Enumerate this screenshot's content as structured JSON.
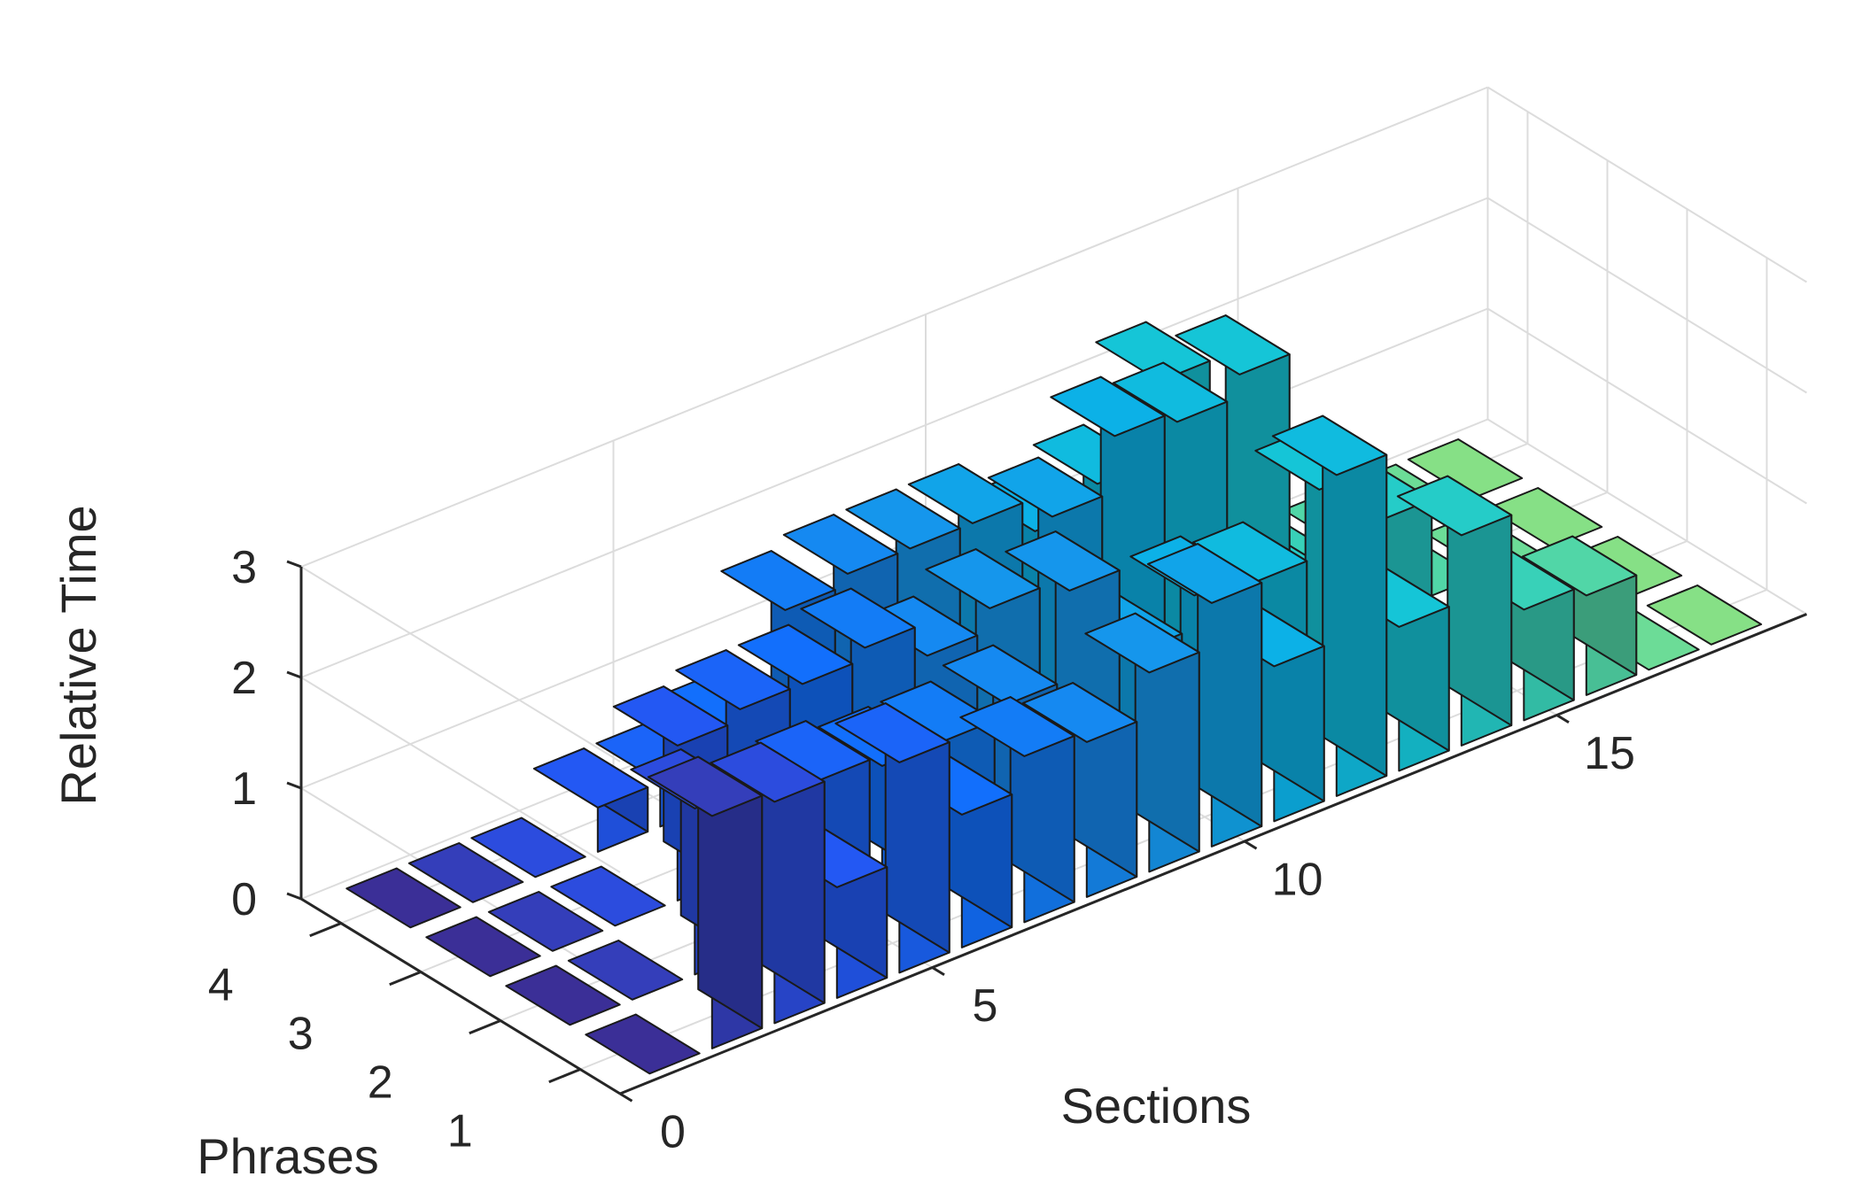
{
  "chart_data": {
    "type": "bar3d",
    "xlabel": "Sections",
    "ylabel": "Phrases",
    "zlabel": "Relative Time",
    "x_ticks": [
      0,
      5,
      10,
      15
    ],
    "y_ticks": [
      1,
      2,
      3,
      4
    ],
    "z_ticks": [
      0,
      1,
      2,
      3
    ],
    "xlim": [
      0,
      19
    ],
    "ylim": [
      0.5,
      4.5
    ],
    "zlim": [
      0,
      3
    ],
    "grid": true,
    "colormap": "parula",
    "sections": [
      1,
      2,
      3,
      4,
      5,
      6,
      7,
      8,
      9,
      10,
      11,
      12,
      13,
      14,
      15,
      16,
      17,
      18
    ],
    "phrases": [
      1,
      2,
      3,
      4
    ],
    "values": [
      [
        0.0,
        0.0,
        0.0,
        0.0
      ],
      [
        2.1,
        0.0,
        0.0,
        0.0
      ],
      [
        2.0,
        1.5,
        0.0,
        0.0
      ],
      [
        1.0,
        0.4,
        1.4,
        0.4
      ],
      [
        1.9,
        1.3,
        1.5,
        0.4
      ],
      [
        1.2,
        1.2,
        1.5,
        0.6
      ],
      [
        1.5,
        1.2,
        1.6,
        1.5
      ],
      [
        1.4,
        1.3,
        1.3,
        1.6
      ],
      [
        1.8,
        2.1,
        1.5,
        1.6
      ],
      [
        2.2,
        1.3,
        2.1,
        1.6
      ],
      [
        1.4,
        1.6,
        2.6,
        1.3
      ],
      [
        2.9,
        1.5,
        2.5,
        1.5
      ],
      [
        1.3,
        2.1,
        2.7,
        2.2
      ],
      [
        1.9,
        1.6,
        0.4,
        0.0
      ],
      [
        1.0,
        0.0,
        0.0,
        0.0
      ],
      [
        0.9,
        0.0,
        0.0,
        0.0
      ],
      [
        0.0,
        0.0,
        0.0,
        0.0
      ],
      [
        0.0,
        0.0,
        0.0,
        0.0
      ]
    ]
  }
}
